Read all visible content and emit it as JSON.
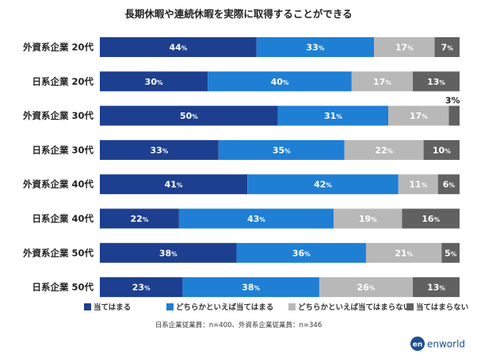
{
  "chart_data": {
    "type": "bar",
    "orientation": "horizontal",
    "stacked": true,
    "percent_stacked": true,
    "title": "長期休暇や連続休暇を実際に取得することができる",
    "categories": [
      "外資系企業 20代",
      "日系企業 20代",
      "外資系企業 30代",
      "日系企業 30代",
      "外資系企業 40代",
      "日系企業 40代",
      "外資系企業 50代",
      "日系企業 50代"
    ],
    "series": [
      {
        "name": "当てはまる",
        "color": "#1d3f8f",
        "label_color": "#ffffff",
        "values": [
          44,
          30,
          50,
          33,
          41,
          22,
          38,
          23
        ]
      },
      {
        "name": "どちらかといえば当てはまる",
        "color": "#1f7fd4",
        "label_color": "#ffffff",
        "values": [
          33,
          40,
          31,
          35,
          42,
          43,
          36,
          38
        ]
      },
      {
        "name": "どちらかといえば当てはまらない",
        "color": "#b8b8b8",
        "label_color": "#ffffff",
        "values": [
          17,
          17,
          17,
          22,
          11,
          19,
          21,
          26
        ]
      },
      {
        "name": "当てはまらない",
        "color": "#616161",
        "label_color": "#ffffff",
        "values": [
          7,
          13,
          3,
          10,
          6,
          16,
          5,
          13
        ]
      }
    ],
    "unit": "%",
    "legend_position": "bottom",
    "outside_label": {
      "category_index": 2,
      "series_index": 3,
      "text": "3%"
    }
  },
  "note": "日系企業従業員：n=400、外資系企業従業員：n=346",
  "brand": {
    "logo_text": "en",
    "name": "enworld",
    "color": "#1d4e8f"
  }
}
